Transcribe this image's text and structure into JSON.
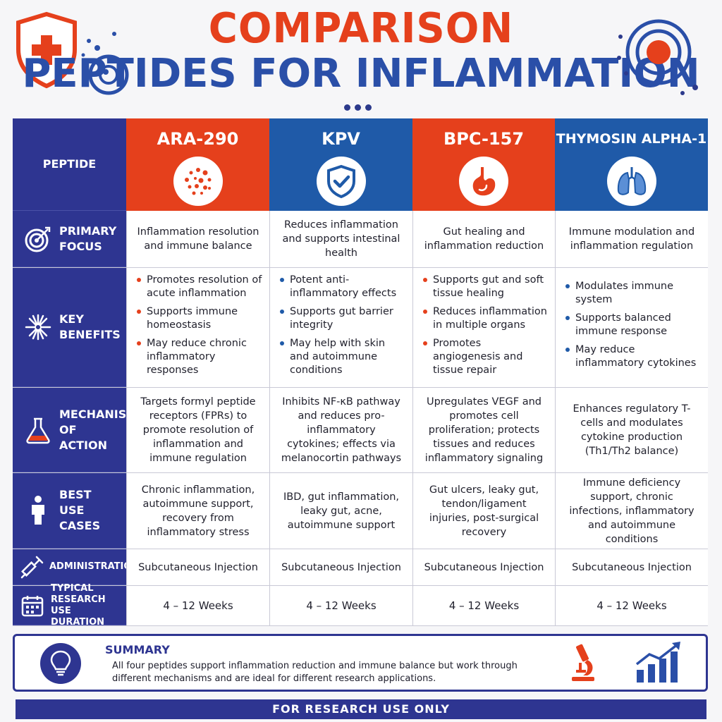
{
  "header": {
    "title_line1": "COMPARISON",
    "title_line2": "PEPTIDES FOR INFLAMMATION"
  },
  "table": {
    "corner_label": "PEPTIDE",
    "peptides": [
      {
        "name": "ARA-290",
        "icon": "cells-icon",
        "color": "#e5401c"
      },
      {
        "name": "KPV",
        "icon": "shield-check-icon",
        "color": "#1f5aa8"
      },
      {
        "name": "BPC-157",
        "icon": "stomach-icon",
        "color": "#e5401c"
      },
      {
        "name": "THYMOSIN ALPHA-1",
        "icon": "lungs-icon",
        "color": "#1f5aa8"
      }
    ],
    "rows": {
      "primary_focus": {
        "label": "PRIMARY FOCUS",
        "icon": "target-icon",
        "values": [
          "Inflammation resolution and immune balance",
          "Reduces inflammation and supports intestinal health",
          "Gut healing and inflammation reduction",
          "Immune modulation and inflammation regulation"
        ]
      },
      "key_benefits": {
        "label": "KEY BENEFITS",
        "icon": "burst-icon",
        "values": [
          [
            "Promotes resolution of acute inflammation",
            "Supports immune homeostasis",
            "May reduce chronic inflammatory responses"
          ],
          [
            "Potent anti-inflammatory effects",
            "Supports gut barrier integrity",
            "May help with skin and autoimmune conditions"
          ],
          [
            "Supports gut and soft tissue healing",
            "Reduces inflammation in multiple organs",
            "Promotes angiogenesis and tissue repair"
          ],
          [
            "Modulates immune system",
            "Supports balanced immune response",
            "May reduce inflammatory cytokines"
          ]
        ]
      },
      "mechanism": {
        "label": "MECHANISM OF ACTION",
        "icon": "flask-icon",
        "values": [
          "Targets formyl peptide receptors (FPRs) to promote resolution of inflammation and immune regulation",
          "Inhibits NF-κB pathway and reduces pro-inflammatory cytokines; effects via melanocortin pathways",
          "Upregulates VEGF and promotes cell proliferation; protects tissues and reduces inflammatory signaling",
          "Enhances regulatory T-cells and modulates cytokine production (Th1/Th2 balance)"
        ]
      },
      "best_use": {
        "label": "BEST USE CASES",
        "icon": "person-icon",
        "values": [
          "Chronic inflammation, autoimmune support, recovery from inflammatory stress",
          "IBD, gut inflammation, leaky gut, acne, autoimmune support",
          "Gut ulcers, leaky gut, tendon/ligament injuries, post-surgical recovery",
          "Immune deficiency support, chronic infections, inflammatory and autoimmune conditions"
        ]
      },
      "administration": {
        "label": "ADMINISTRATION",
        "icon": "syringe-icon",
        "values": [
          "Subcutaneous Injection",
          "Subcutaneous Injection",
          "Subcutaneous Injection",
          "Subcutaneous Injection"
        ]
      },
      "duration": {
        "label": "TYPICAL RESEARCH USE DURATION",
        "icon": "calendar-icon",
        "values": [
          "4 – 12 Weeks",
          "4 – 12 Weeks",
          "4 – 12 Weeks",
          "4 – 12 Weeks"
        ]
      }
    }
  },
  "summary": {
    "title": "SUMMARY",
    "text": "All four peptides support inflammation reduction and immune balance but work through different mechanisms and are ideal for different research applications.",
    "icons": [
      "lightbulb-icon",
      "microscope-icon",
      "growth-chart-icon"
    ]
  },
  "footer": {
    "text": "FOR RESEARCH USE ONLY"
  },
  "colors": {
    "navy": "#2e3591",
    "red": "#e5401c",
    "blue": "#1f5aa8"
  }
}
